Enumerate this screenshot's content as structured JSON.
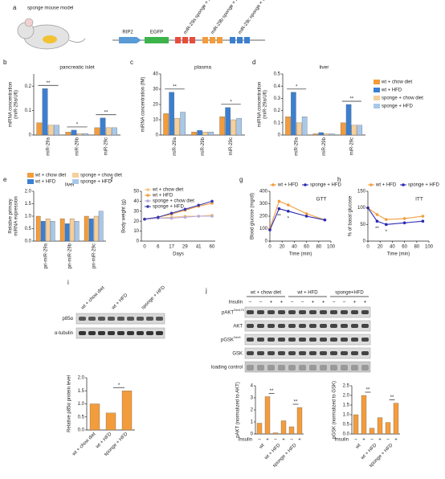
{
  "figure": {
    "a": {
      "panel": "a",
      "title": "sponge mouse model",
      "construct": [
        "RIP2",
        "EGFP",
        "miR-29a sponge × 3",
        "miR-29b sponge × 3",
        "miR-29c sponge × 3"
      ]
    },
    "i": {
      "panel": "i",
      "lanes": [
        "wt + chow diet",
        "wt + HFD",
        "sponge + HFD"
      ],
      "bands": [
        {
          "label": "p85α"
        },
        {
          "label": "α-tubulin"
        }
      ]
    },
    "j": {
      "panel": "j",
      "lanes": [
        "wt + chow diet",
        "wt + HFD",
        "sponge+HFD"
      ],
      "insulin_label": "Insulin",
      "insulin": [
        "–",
        "–",
        "+",
        "+",
        "–",
        "–",
        "+",
        "+",
        "–",
        "–",
        "+",
        "+"
      ],
      "bands": [
        {
          "label": "pAKT",
          "sup": "Ser473"
        },
        {
          "label": "AKT"
        },
        {
          "label": "pGSK",
          "sup": "Ser9"
        },
        {
          "label": "GSK"
        },
        {
          "label": "loading control"
        }
      ]
    }
  },
  "chart_data": [
    {
      "type": "bar",
      "panel": "b",
      "title": "pancreatic islet",
      "ylabel": [
        "miRNA concentration",
        "(miR-29a/U6)"
      ],
      "categories": [
        "miR-29a",
        "miR-29b",
        "miR-29c"
      ],
      "series": [
        {
          "color": "#f39c3c",
          "values": [
            0.05,
            0.012,
            0.03
          ]
        },
        {
          "color": "#3b7fd0",
          "values": [
            0.19,
            0.02,
            0.07
          ]
        },
        {
          "color": "#f6cf9a",
          "values": [
            0.04,
            0.006,
            0.03
          ]
        },
        {
          "color": "#a8c8ea",
          "values": [
            0.04,
            0.006,
            0.03
          ]
        }
      ],
      "ylim": [
        0,
        0.25
      ],
      "yticks": [
        0,
        0.1,
        0.2
      ],
      "annotations": [
        "**",
        "*",
        "**"
      ]
    },
    {
      "type": "bar",
      "panel": "c",
      "title": "plasma",
      "ylabel": [
        "miRNA concentration (fM)"
      ],
      "categories": [
        "miR-29a",
        "miR-29b",
        "miR-29c"
      ],
      "series": [
        {
          "color": "#f39c3c",
          "values": [
            14,
            2,
            12
          ]
        },
        {
          "color": "#3b7fd0",
          "values": [
            28,
            3,
            18
          ]
        },
        {
          "color": "#f6cf9a",
          "values": [
            11,
            2,
            10
          ]
        },
        {
          "color": "#a8c8ea",
          "values": [
            15,
            2,
            11
          ]
        }
      ],
      "ylim": [
        0,
        40
      ],
      "yticks": [
        0,
        10,
        20,
        30,
        40
      ],
      "annotations": [
        "**",
        "*"
      ]
    },
    {
      "type": "bar",
      "panel": "d",
      "title": "liver",
      "ylabel": [
        "miRNA concentration",
        "(miR-29a/U6)"
      ],
      "categories": [
        "miR-29a",
        "miR-29b",
        "miR-29c"
      ],
      "series": [
        {
          "name": "wt + chow diet",
          "color": "#f39c3c",
          "values": [
            0.15,
            0.01,
            0.1
          ]
        },
        {
          "name": "wt + HFD",
          "color": "#3b7fd0",
          "values": [
            0.35,
            0.02,
            0.25
          ]
        },
        {
          "name": "sponge + chow diet",
          "color": "#f6cf9a",
          "values": [
            0.1,
            0.01,
            0.08
          ]
        },
        {
          "name": "sponge + HFD",
          "color": "#a8c8ea",
          "values": [
            0.15,
            0.01,
            0.08
          ]
        }
      ],
      "ylim": [
        0,
        0.5
      ],
      "yticks": [
        0,
        0.1,
        0.2,
        0.3,
        0.4,
        0.5
      ],
      "legend": "outside-right",
      "annotations": [
        "*",
        "**"
      ]
    },
    {
      "type": "bar",
      "panel": "e",
      "title": "liver",
      "ylabel": [
        "Relative primary",
        "miRNA expression"
      ],
      "categories": [
        "pri-miR-29a",
        "pri-miR-29b",
        "pri-miR-29c"
      ],
      "series": [
        {
          "name": "wt + chow diet",
          "color": "#f39c3c",
          "values": [
            1.0,
            0.9,
            1.0
          ]
        },
        {
          "name": "wt + HFD",
          "color": "#3b7fd0",
          "values": [
            0.8,
            0.7,
            0.9
          ]
        },
        {
          "name": "sponge + chow diet",
          "color": "#f6cf9a",
          "values": [
            0.9,
            0.9,
            1.0
          ]
        },
        {
          "name": "sponge + HFD",
          "color": "#a8c8ea",
          "values": [
            0.8,
            0.8,
            1.2
          ]
        }
      ],
      "ylim": [
        0,
        2
      ],
      "yticks": [
        {
          "value": 0,
          "label": "0.0"
        },
        0.5,
        {
          "value": 1,
          "label": "1.0"
        },
        1.5,
        {
          "value": 2,
          "label": "2.0"
        }
      ],
      "legend": "top"
    },
    {
      "type": "line",
      "panel": "f",
      "ylabel": [
        "Body weight (g)"
      ],
      "xlabel": "Days",
      "categories": [
        "0",
        "6",
        "17",
        "29",
        "41",
        "60"
      ],
      "series": [
        {
          "name": "wt + chow diet",
          "color": "#f6c27a",
          "values": [
            22,
            23,
            24,
            25,
            25,
            26
          ]
        },
        {
          "name": "wt + HFD",
          "color": "#f39c3c",
          "values": [
            22,
            24,
            27,
            31,
            35,
            38
          ]
        },
        {
          "name": "sponge + chow diet",
          "color": "#b7a8d8",
          "values": [
            22,
            23,
            23,
            24,
            25,
            25
          ]
        },
        {
          "name": "sponge + HFD",
          "color": "#3a3ab0",
          "values": [
            22,
            24,
            28,
            32,
            36,
            40
          ]
        }
      ],
      "ylim": [
        0,
        50
      ],
      "yticks": [
        0,
        10,
        20,
        30,
        40,
        50
      ],
      "legend": "upper-left"
    },
    {
      "type": "line",
      "panel": "g",
      "title": "GTT",
      "ylabel": [
        "Blood glucose (mg/dl)"
      ],
      "xlabel": "Time (min)",
      "x": [
        0,
        15,
        30,
        60,
        90
      ],
      "series": [
        {
          "name": "wt + HFD",
          "color": "#f39c3c",
          "values": [
            100,
            320,
            290,
            220,
            170
          ]
        },
        {
          "name": "sponge + HFD",
          "color": "#2a2ab0",
          "values": [
            90,
            260,
            240,
            200,
            170
          ]
        }
      ],
      "xlim": [
        0,
        100
      ],
      "xticks": [
        0,
        20,
        40,
        60,
        80,
        100
      ],
      "ylim": [
        0,
        400
      ],
      "yticks": [
        0,
        100,
        200,
        300,
        400
      ],
      "legend": "top",
      "annotations": [
        "**",
        "*"
      ]
    },
    {
      "type": "line",
      "panel": "h",
      "title": "ITT",
      "ylabel": [
        "% of basal glucose"
      ],
      "xlabel": "Time (min)",
      "x": [
        0,
        15,
        30,
        60,
        90
      ],
      "series": [
        {
          "name": "wt + HFD",
          "color": "#f39c3c",
          "values": [
            100,
            80,
            65,
            68,
            75
          ]
        },
        {
          "name": "sponge + HFD",
          "color": "#2a2ab0",
          "values": [
            100,
            60,
            50,
            55,
            60
          ]
        }
      ],
      "xlim": [
        0,
        100
      ],
      "xticks": [
        0,
        20,
        40,
        60,
        80,
        100
      ],
      "ylim": [
        0,
        150
      ],
      "yticks": [
        0,
        50,
        100,
        150
      ],
      "legend": "top",
      "annotations": [
        "**",
        "*"
      ]
    },
    {
      "type": "bar",
      "ylabel": [
        "Relative p85α protein level"
      ],
      "categories": [
        "wt + chow diet",
        "wt + HFD",
        "sponge + HFD"
      ],
      "values": [
        1.0,
        0.65,
        1.5
      ],
      "color": "#f39c3c",
      "ylim": [
        0,
        2
      ],
      "yticks": [
        {
          "value": 0,
          "label": "0.0"
        },
        0.5,
        {
          "value": 1,
          "label": "1.0"
        },
        1.5,
        {
          "value": 2,
          "label": "2.0"
        }
      ],
      "annotations": [
        "*"
      ]
    },
    {
      "type": "bar",
      "ylabel": [
        "pAKT (normalized to AKT)"
      ],
      "insulin_label": "Insulin",
      "groups": [
        "wt",
        "wt + HFD",
        "sponge + HFD"
      ],
      "categories": [
        "–",
        "+",
        "–",
        "+",
        "–",
        "+"
      ],
      "values": [
        0.9,
        3.1,
        0.1,
        1.1,
        0.6,
        2.2
      ],
      "color": "#f39c3c",
      "ylim": [
        0,
        4
      ],
      "yticks": [
        0,
        1,
        2,
        3,
        4
      ],
      "annotations": [
        "**",
        "**"
      ]
    },
    {
      "type": "bar",
      "ylabel": [
        "pGSK (normalized to GSK)"
      ],
      "insulin_label": "Insulin",
      "groups": [
        "wt",
        "wt + HFD",
        "sponge + HFD"
      ],
      "categories": [
        "–",
        "+",
        "–",
        "+",
        "–",
        "+"
      ],
      "values": [
        1.0,
        2.0,
        0.3,
        0.85,
        0.6,
        1.6
      ],
      "color": "#f39c3c",
      "ylim": [
        0,
        2.5
      ],
      "yticks": [
        {
          "value": 0,
          "label": "0.0"
        },
        0.5,
        {
          "value": 1,
          "label": "1.0"
        },
        1.5,
        {
          "value": 2,
          "label": "2.0"
        },
        2.5
      ],
      "annotations": [
        "**",
        "**"
      ]
    }
  ]
}
